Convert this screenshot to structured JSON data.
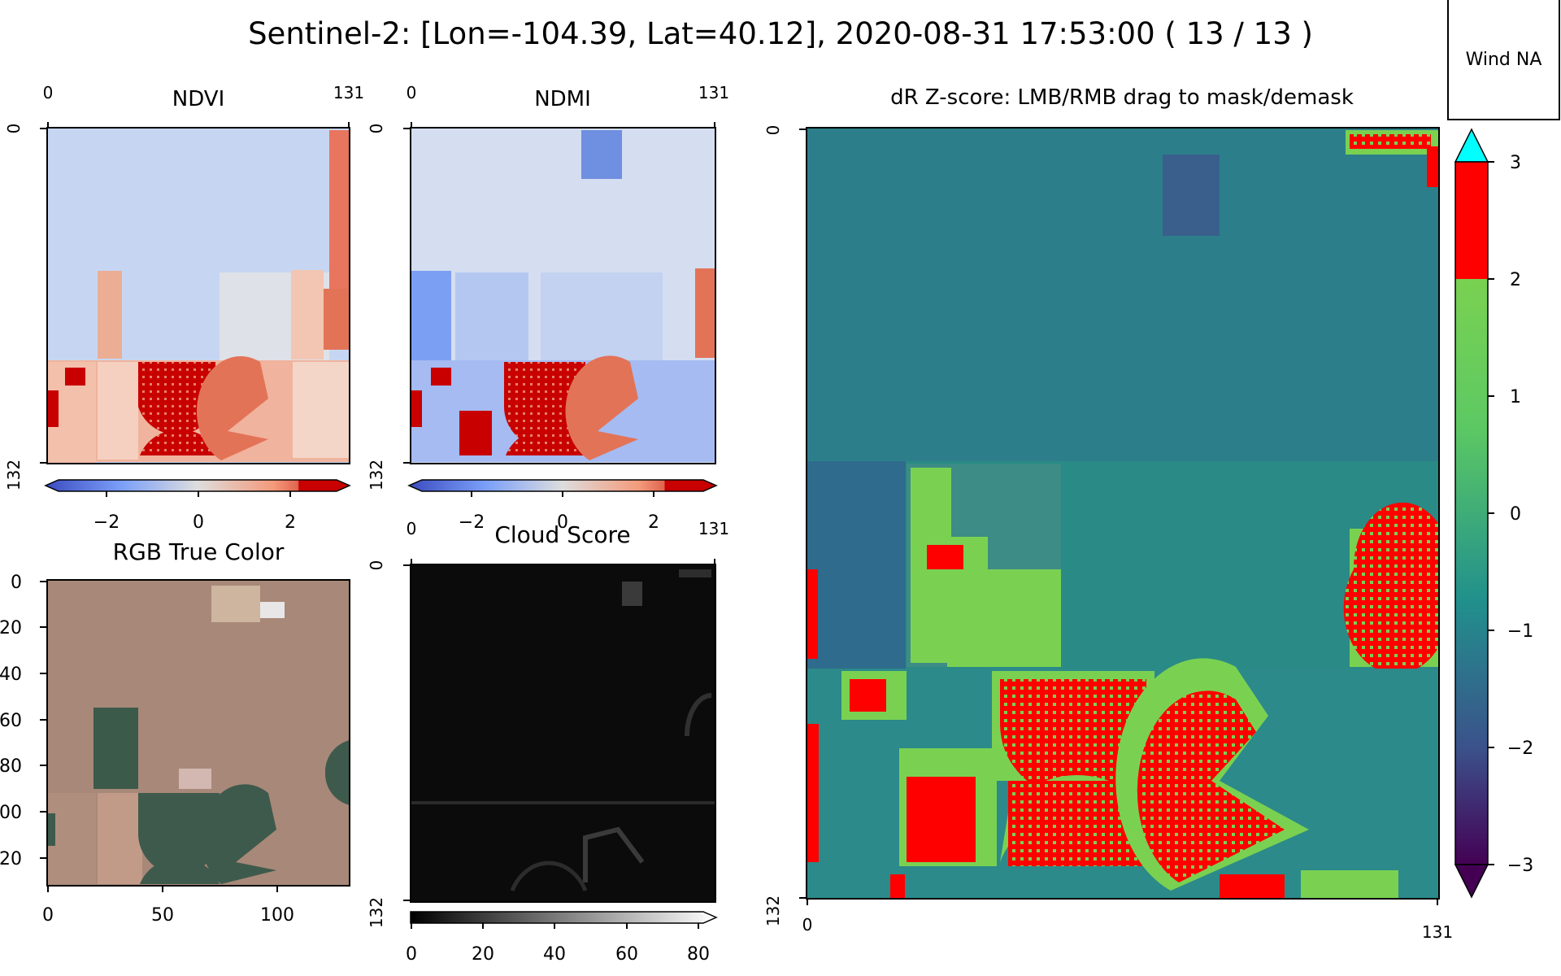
{
  "figure": {
    "suptitle": "Sentinel-2: [Lon=-104.39, Lat=40.12], 2020-08-31 17:53:00 ( 13 / 13 )",
    "wind_label": "Wind NA"
  },
  "panels": {
    "ndvi": {
      "title": "NDVI",
      "x_ticks": [
        "0",
        "131"
      ],
      "y_ticks": [
        "0",
        "132"
      ],
      "colormap": "coolwarm",
      "colorbar_ticks": [
        "−2",
        "0",
        "2"
      ]
    },
    "ndmi": {
      "title": "NDMI",
      "x_ticks": [
        "0",
        "131"
      ],
      "y_ticks": [
        "0",
        "132"
      ],
      "colormap": "coolwarm",
      "colorbar_ticks": [
        "−2",
        "0",
        "2"
      ]
    },
    "rgb": {
      "title": "RGB True Color",
      "x_ticks": [
        "0",
        "50",
        "100"
      ],
      "y_ticks": [
        "0",
        "20",
        "40",
        "60",
        "80",
        "100",
        "120"
      ]
    },
    "cloud": {
      "title": "Cloud Score",
      "x_ticks": [
        "0",
        "131"
      ],
      "y_ticks": [
        "0",
        "132"
      ],
      "colormap": "gray",
      "colorbar_ticks": [
        "0",
        "20",
        "40",
        "60",
        "80"
      ]
    },
    "dr": {
      "title": "dR Z-score: LMB/RMB drag to mask/demask",
      "x_ticks": [
        "0",
        "131"
      ],
      "y_ticks": [
        "0",
        "132"
      ],
      "colorbar_ticks": [
        "3",
        "2",
        "1",
        "0",
        "−1",
        "−2",
        "−3"
      ]
    }
  },
  "colors": {
    "red": "#ff0000",
    "dark_red": "#c80000",
    "light_green": "#7bd04f",
    "teal": "#2a8a85",
    "dark_teal": "#2e6d8c",
    "cyan": "#00ffff",
    "purple": "#440154"
  },
  "chart_data": [
    {
      "type": "heatmap",
      "title": "NDVI",
      "xlim": [
        0,
        131
      ],
      "ylim": [
        132,
        0
      ],
      "colorbar_range": [
        -3,
        3
      ],
      "colormap": "coolwarm"
    },
    {
      "type": "heatmap",
      "title": "NDMI",
      "xlim": [
        0,
        131
      ],
      "ylim": [
        132,
        0
      ],
      "colorbar_range": [
        -3,
        3
      ],
      "colormap": "coolwarm"
    },
    {
      "type": "heatmap",
      "title": "RGB True Color",
      "xlim": [
        0,
        131
      ],
      "ylim": [
        132,
        0
      ]
    },
    {
      "type": "heatmap",
      "title": "Cloud Score",
      "xlim": [
        0,
        131
      ],
      "ylim": [
        132,
        0
      ],
      "colorbar_range": [
        0,
        85
      ],
      "colormap": "gray"
    },
    {
      "type": "heatmap",
      "title": "dR Z-score: LMB/RMB drag to mask/demask",
      "xlim": [
        0,
        131
      ],
      "ylim": [
        132,
        0
      ],
      "colorbar_range": [
        -3,
        3
      ],
      "colorbar_extend": "both",
      "colorbar_levels": [
        [
          -3,
          2,
          "viridis"
        ],
        [
          2,
          3,
          "#ff0000"
        ]
      ]
    }
  ]
}
